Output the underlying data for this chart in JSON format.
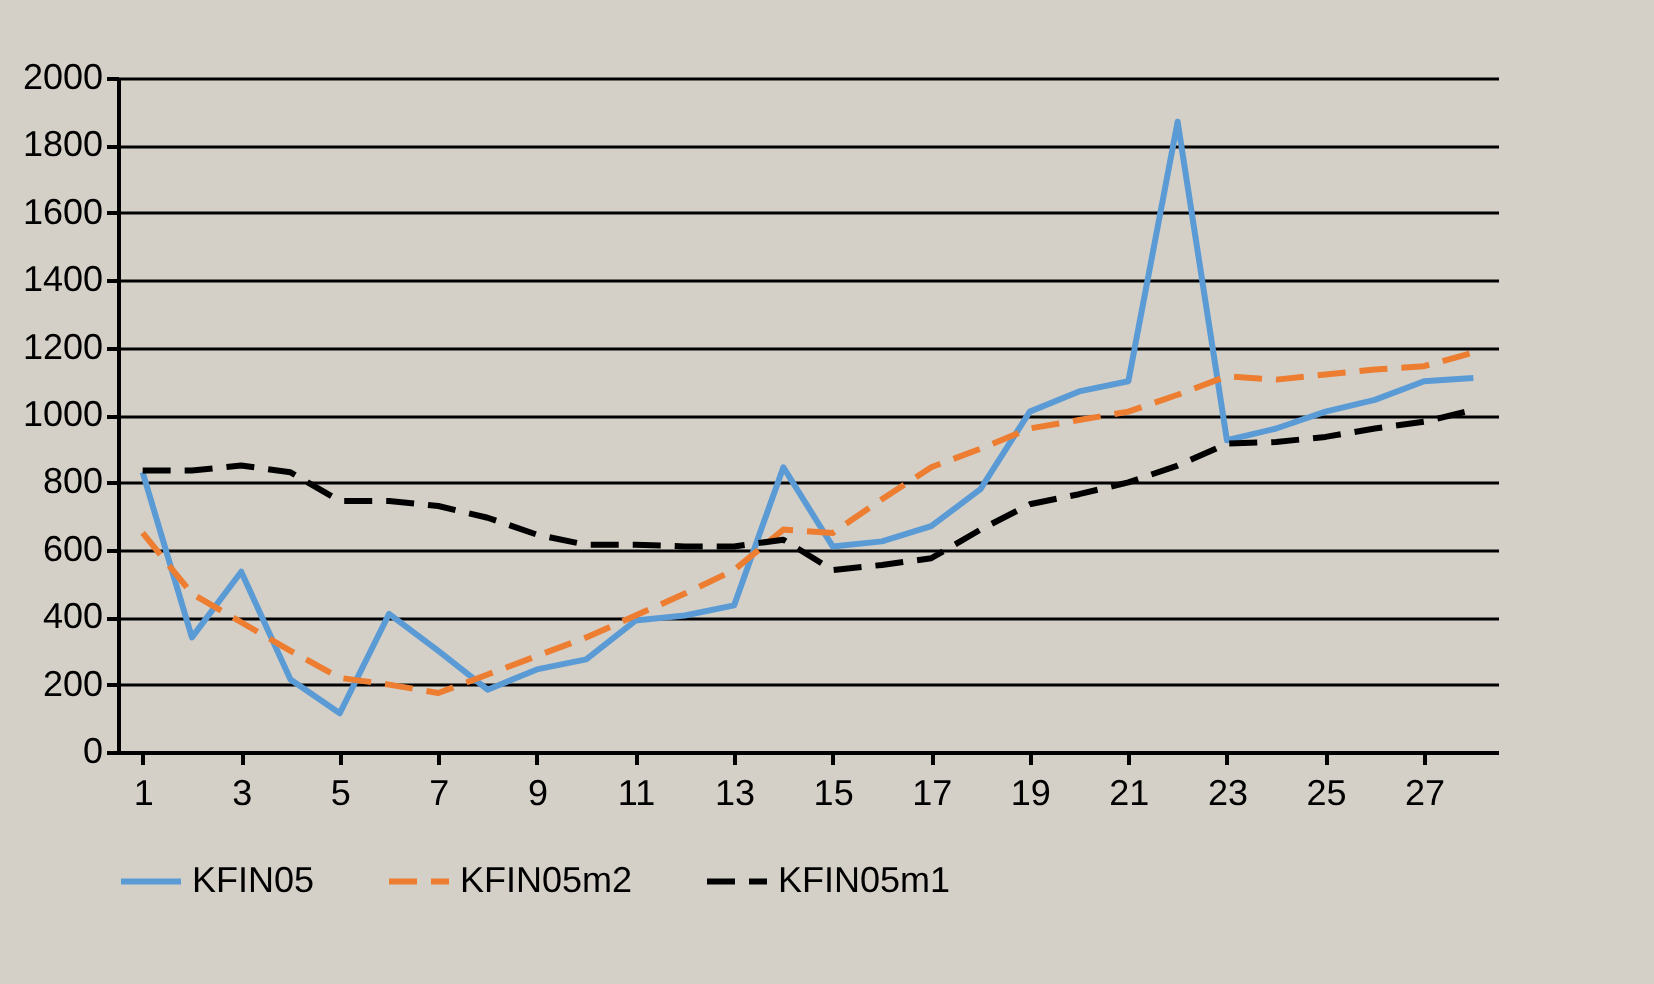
{
  "chart_data": {
    "type": "line",
    "x": [
      1,
      2,
      3,
      4,
      5,
      6,
      7,
      8,
      9,
      10,
      11,
      12,
      13,
      14,
      15,
      16,
      17,
      18,
      19,
      20,
      21,
      22,
      23,
      24,
      25,
      26,
      27,
      28
    ],
    "xlim": [
      0.5,
      28.5
    ],
    "xticks": [
      1,
      3,
      5,
      7,
      9,
      11,
      13,
      15,
      17,
      19,
      21,
      23,
      25,
      27
    ],
    "series": [
      {
        "name": "KFIN05",
        "color": "#5b9bd5",
        "line_style": "solid",
        "values": [
          830,
          340,
          535,
          215,
          115,
          410,
          300,
          185,
          245,
          275,
          390,
          405,
          435,
          845,
          610,
          625,
          670,
          780,
          1010,
          1070,
          1100,
          1870,
          925,
          960,
          1010,
          1045,
          1100,
          1110
        ]
      },
      {
        "name": "KFIN05m2",
        "color": "#ed7d31",
        "line_style": "dashed",
        "values": [
          650,
          470,
          385,
          300,
          220,
          200,
          175,
          230,
          285,
          340,
          405,
          470,
          540,
          660,
          650,
          750,
          845,
          900,
          960,
          985,
          1010,
          1060,
          1115,
          1105,
          1120,
          1135,
          1145,
          1185
        ]
      },
      {
        "name": "KFIN05m1",
        "color": "#000000",
        "line_style": "dashed",
        "values": [
          835,
          835,
          850,
          830,
          745,
          745,
          730,
          695,
          645,
          615,
          615,
          610,
          610,
          630,
          540,
          555,
          575,
          660,
          735,
          765,
          800,
          850,
          915,
          920,
          935,
          960,
          980,
          1015
        ]
      }
    ],
    "ylim": [
      0,
      2000
    ],
    "yticks": [
      0,
      200,
      400,
      600,
      800,
      1000,
      1200,
      1400,
      1600,
      1800,
      2000
    ],
    "grid": "y",
    "legend": "bottom",
    "marker": "none"
  }
}
